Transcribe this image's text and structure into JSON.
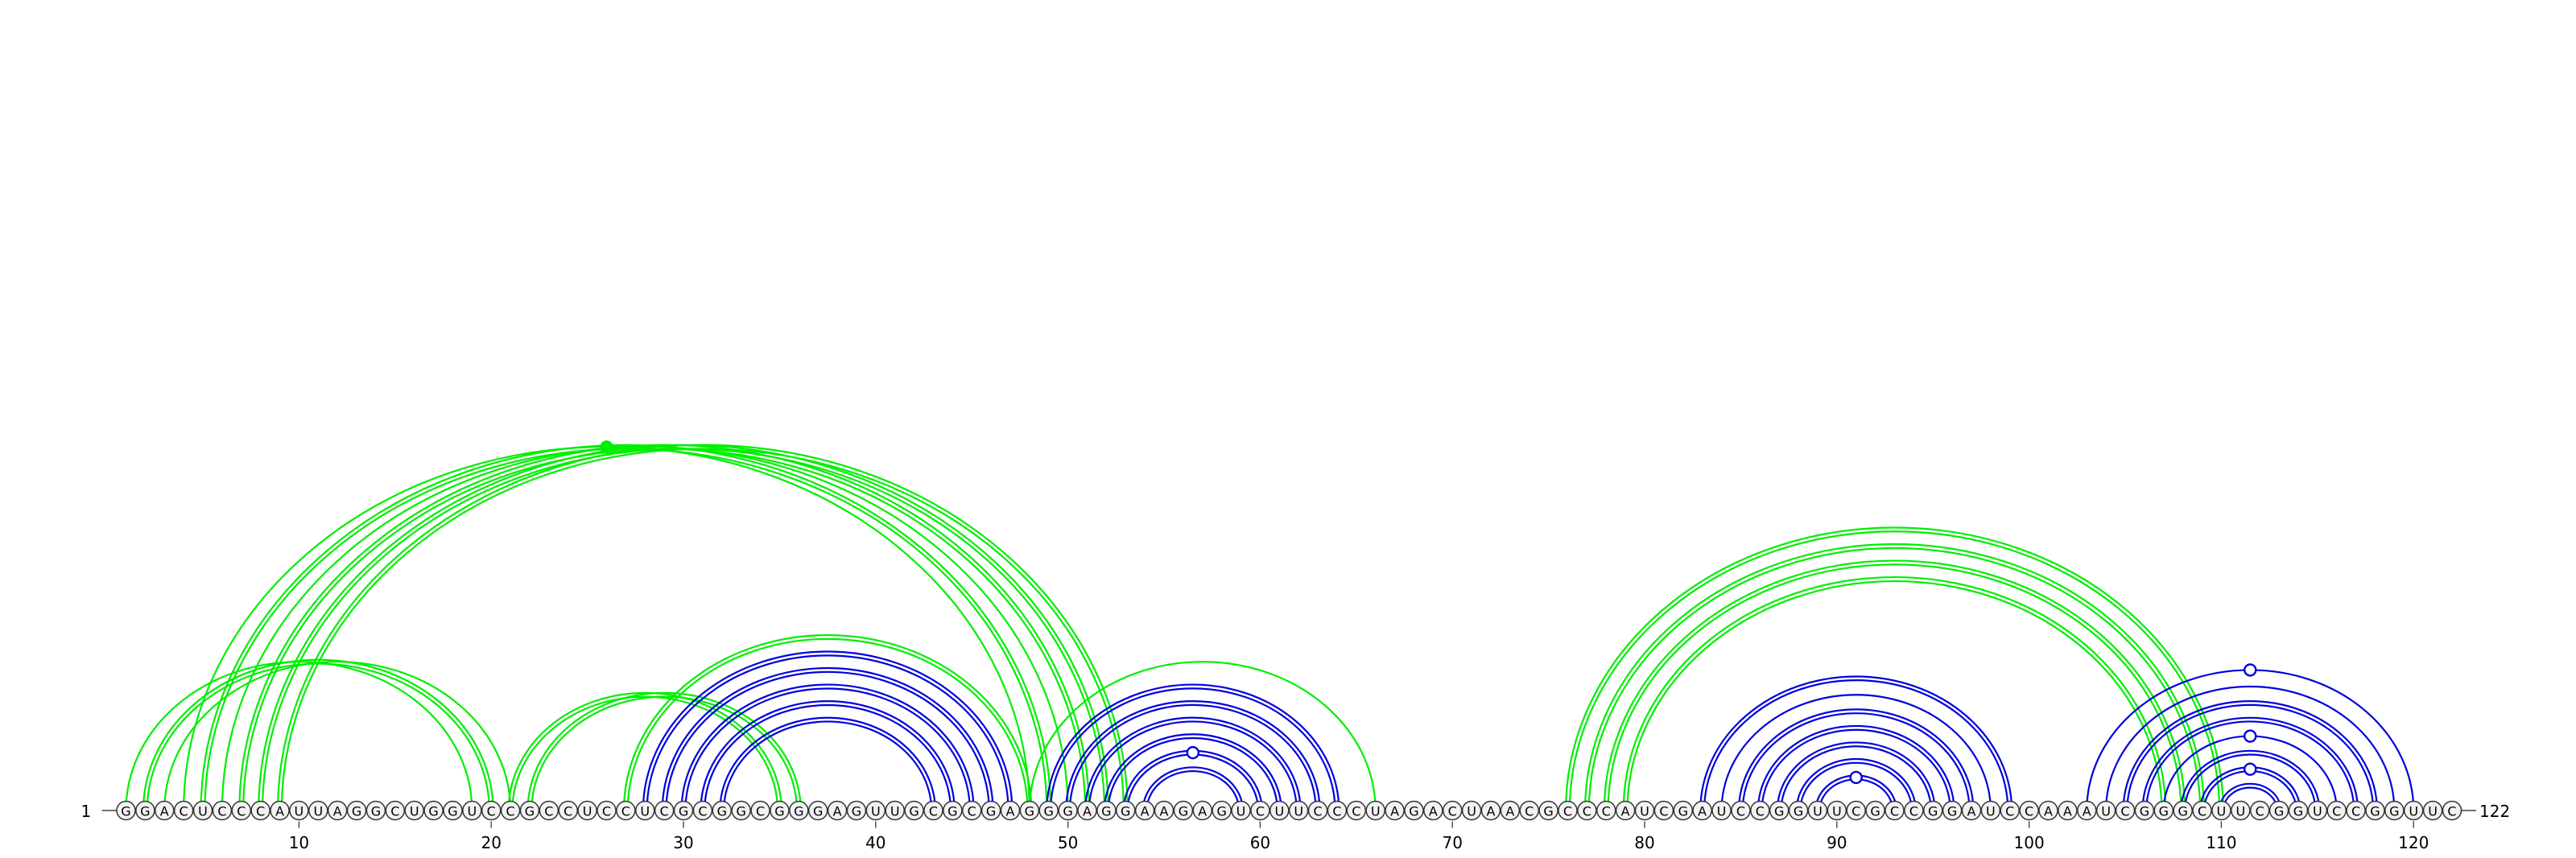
{
  "diagram": {
    "type": "rna-arc-diagram",
    "sequence": "GGACUCCCAUUAGGCUGGUCCGCCUCCUCGCGGCGGGAGUUGCGCGAGGGAGGAAGAGUCUUCCCUAGACUAACGCCCAUCGAUCCGGUUCGCCGGAUCCAAAUCGGGCUUCGGUCCGGUUC",
    "start_label": "1",
    "end_label": "122",
    "tick_step": 10,
    "colors": {
      "green": "#00ee00",
      "blue": "#0000dd",
      "nucleotide_fill": "#f2f2f2",
      "nucleotide_stroke": "#333333"
    },
    "arcs": [
      {
        "i": 1,
        "j": 19,
        "color": "green",
        "style": "single"
      },
      {
        "i": 2,
        "j": 20,
        "color": "green",
        "style": "double"
      },
      {
        "i": 3,
        "j": 21,
        "color": "green",
        "style": "single"
      },
      {
        "i": 4,
        "j": 48,
        "color": "green",
        "style": "single",
        "marker": "filled"
      },
      {
        "i": 5,
        "j": 49,
        "color": "green",
        "style": "double"
      },
      {
        "i": 6,
        "j": 50,
        "color": "green",
        "style": "single"
      },
      {
        "i": 7,
        "j": 51,
        "color": "green",
        "style": "double"
      },
      {
        "i": 8,
        "j": 52,
        "color": "green",
        "style": "double"
      },
      {
        "i": 9,
        "j": 53,
        "color": "green",
        "style": "double"
      },
      {
        "i": 21,
        "j": 35,
        "color": "green",
        "style": "double"
      },
      {
        "i": 22,
        "j": 36,
        "color": "green",
        "style": "double"
      },
      {
        "i": 27,
        "j": 48,
        "color": "green",
        "style": "double"
      },
      {
        "i": 28,
        "j": 47,
        "color": "blue",
        "style": "double"
      },
      {
        "i": 29,
        "j": 46,
        "color": "blue",
        "style": "double"
      },
      {
        "i": 30,
        "j": 45,
        "color": "blue",
        "style": "double"
      },
      {
        "i": 31,
        "j": 44,
        "color": "blue",
        "style": "double"
      },
      {
        "i": 32,
        "j": 43,
        "color": "blue",
        "style": "double"
      },
      {
        "i": 48,
        "j": 66,
        "color": "green",
        "style": "single"
      },
      {
        "i": 49,
        "j": 64,
        "color": "blue",
        "style": "double"
      },
      {
        "i": 50,
        "j": 63,
        "color": "blue",
        "style": "double"
      },
      {
        "i": 51,
        "j": 62,
        "color": "blue",
        "style": "double"
      },
      {
        "i": 52,
        "j": 61,
        "color": "blue",
        "style": "double"
      },
      {
        "i": 53,
        "j": 60,
        "color": "blue",
        "style": "double",
        "marker": "open"
      },
      {
        "i": 54,
        "j": 59,
        "color": "blue",
        "style": "double"
      },
      {
        "i": 76,
        "j": 110,
        "color": "green",
        "style": "double"
      },
      {
        "i": 77,
        "j": 109,
        "color": "green",
        "style": "double"
      },
      {
        "i": 78,
        "j": 108,
        "color": "green",
        "style": "double"
      },
      {
        "i": 79,
        "j": 107,
        "color": "green",
        "style": "double"
      },
      {
        "i": 83,
        "j": 99,
        "color": "blue",
        "style": "double"
      },
      {
        "i": 84,
        "j": 98,
        "color": "blue",
        "style": "single"
      },
      {
        "i": 85,
        "j": 97,
        "color": "blue",
        "style": "double"
      },
      {
        "i": 86,
        "j": 96,
        "color": "blue",
        "style": "double"
      },
      {
        "i": 87,
        "j": 95,
        "color": "blue",
        "style": "double"
      },
      {
        "i": 88,
        "j": 94,
        "color": "blue",
        "style": "double"
      },
      {
        "i": 89,
        "j": 93,
        "color": "blue",
        "style": "double",
        "marker": "open"
      },
      {
        "i": 103,
        "j": 120,
        "color": "blue",
        "style": "single",
        "marker": "open"
      },
      {
        "i": 104,
        "j": 119,
        "color": "blue",
        "style": "single"
      },
      {
        "i": 105,
        "j": 118,
        "color": "blue",
        "style": "double"
      },
      {
        "i": 106,
        "j": 117,
        "color": "blue",
        "style": "double"
      },
      {
        "i": 107,
        "j": 116,
        "color": "blue",
        "style": "single",
        "marker": "open"
      },
      {
        "i": 108,
        "j": 115,
        "color": "blue",
        "style": "double"
      },
      {
        "i": 109,
        "j": 114,
        "color": "blue",
        "style": "double",
        "marker": "open"
      },
      {
        "i": 110,
        "j": 113,
        "color": "blue",
        "style": "double"
      }
    ]
  }
}
